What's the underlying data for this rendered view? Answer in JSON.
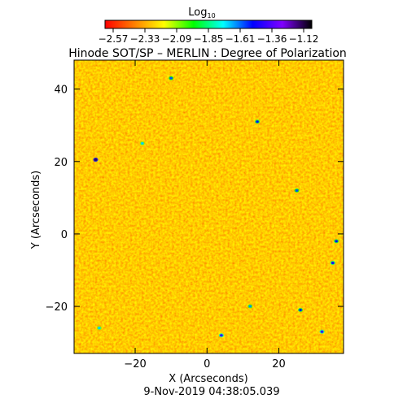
{
  "chart_data": {
    "type": "heatmap",
    "title": "Hinode SOT/SP – MERLIN : Degree of Polarization",
    "colorbar": {
      "label_base": "Log",
      "label_sub": "10",
      "ticks": [
        "−2.57",
        "−2.33",
        "−2.09",
        "−1.85",
        "−1.61",
        "−1.36",
        "−1.12"
      ],
      "range": [
        -2.57,
        -1.12
      ],
      "colormap": [
        "#ff0000",
        "#ff8000",
        "#ffff00",
        "#00ff00",
        "#00ffff",
        "#0000ff",
        "#8000ff",
        "#000000"
      ]
    },
    "xlabel": "X (Arcseconds)",
    "ylabel": "Y (Arcseconds)",
    "xlim": [
      -37,
      38
    ],
    "ylim": [
      -33,
      48
    ],
    "xticks": [
      -20,
      0,
      20
    ],
    "yticks": [
      -20,
      0,
      20,
      40
    ],
    "field": {
      "background_value": -2.45,
      "features": [
        {
          "x": -31,
          "y": 20.5,
          "value": -1.2
        },
        {
          "x": 4,
          "y": -28,
          "value": -1.45
        },
        {
          "x": 32,
          "y": -27,
          "value": -1.45
        },
        {
          "x": 26,
          "y": -21,
          "value": -1.55
        },
        {
          "x": 35,
          "y": -8,
          "value": -1.5
        },
        {
          "x": 14,
          "y": 31,
          "value": -1.55
        },
        {
          "x": -10,
          "y": 43,
          "value": -1.6
        },
        {
          "x": 25,
          "y": 12,
          "value": -1.6
        },
        {
          "x": 36,
          "y": -2,
          "value": -1.55
        },
        {
          "x": -18,
          "y": 25,
          "value": -1.7
        },
        {
          "x": 12,
          "y": -20,
          "value": -1.65
        },
        {
          "x": -30,
          "y": -26,
          "value": -1.7
        }
      ]
    },
    "footer": "9-Nov-2019 04:38:05.039"
  }
}
